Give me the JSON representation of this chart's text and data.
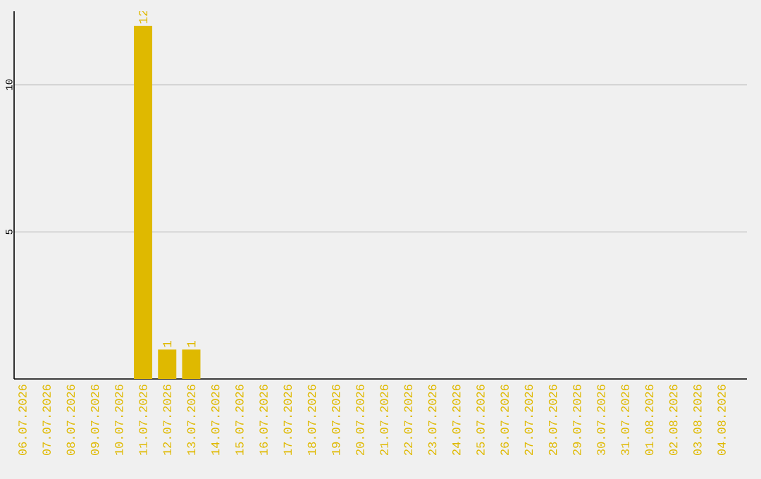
{
  "chart_data": {
    "type": "bar",
    "categories": [
      "06.07.2026",
      "07.07.2026",
      "08.07.2026",
      "09.07.2026",
      "10.07.2026",
      "11.07.2026",
      "12.07.2026",
      "13.07.2026",
      "14.07.2026",
      "15.07.2026",
      "16.07.2026",
      "17.07.2026",
      "18.07.2026",
      "19.07.2026",
      "20.07.2026",
      "21.07.2026",
      "22.07.2026",
      "23.07.2026",
      "24.07.2026",
      "25.07.2026",
      "26.07.2026",
      "27.07.2026",
      "28.07.2026",
      "29.07.2026",
      "30.07.2026",
      "31.07.2026",
      "01.08.2026",
      "02.08.2026",
      "03.08.2026",
      "04.08.2026"
    ],
    "values": [
      0,
      0,
      0,
      0,
      0,
      12,
      1,
      1,
      0,
      0,
      0,
      0,
      0,
      0,
      0,
      0,
      0,
      0,
      0,
      0,
      0,
      0,
      0,
      0,
      0,
      0,
      0,
      0,
      0,
      0
    ],
    "value_labels": [
      null,
      null,
      null,
      null,
      null,
      "12",
      "1",
      "1",
      null,
      null,
      null,
      null,
      null,
      null,
      null,
      null,
      null,
      null,
      null,
      null,
      null,
      null,
      null,
      null,
      null,
      null,
      null,
      null,
      null,
      null
    ],
    "color": "#dfb900",
    "ylim": [
      0,
      12.5
    ],
    "yticks": [
      5,
      10
    ],
    "grid": "y"
  }
}
